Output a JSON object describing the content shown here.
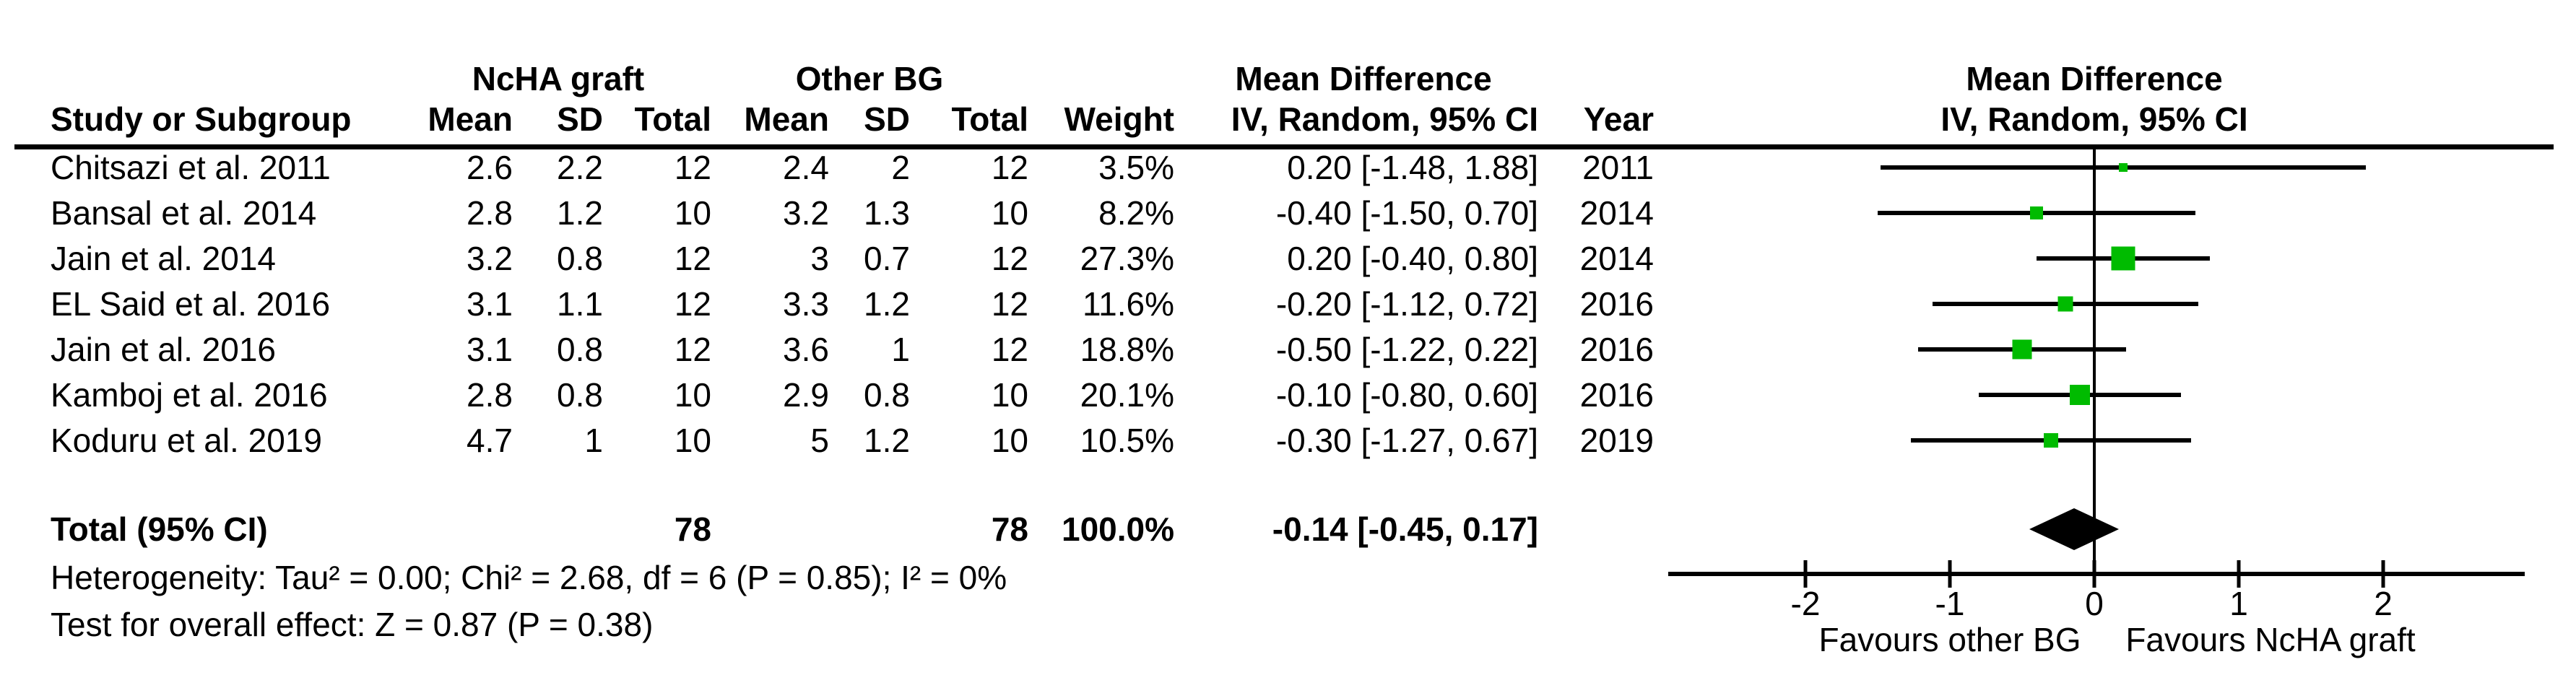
{
  "headers": {
    "study": "Study or Subgroup",
    "mean": "Mean",
    "sd": "SD",
    "total": "Total",
    "weight": "Weight",
    "iv": "IV, Random, 95% CI",
    "year": "Year",
    "group1": "NcHA graft",
    "group2": "Other BG",
    "effect": "Mean Difference"
  },
  "rows": [
    {
      "study": "Chitsazi et al. 2011",
      "mean1": "2.6",
      "sd1": "2.2",
      "total1": "12",
      "mean2": "2.4",
      "sd2": "2",
      "total2": "12",
      "weight": "3.5%",
      "ci": "0.20 [-1.48, 1.88]",
      "year": "2011"
    },
    {
      "study": "Bansal et al. 2014",
      "mean1": "2.8",
      "sd1": "1.2",
      "total1": "10",
      "mean2": "3.2",
      "sd2": "1.3",
      "total2": "10",
      "weight": "8.2%",
      "ci": "-0.40 [-1.50, 0.70]",
      "year": "2014"
    },
    {
      "study": "Jain et al. 2014",
      "mean1": "3.2",
      "sd1": "0.8",
      "total1": "12",
      "mean2": "3",
      "sd2": "0.7",
      "total2": "12",
      "weight": "27.3%",
      "ci": "0.20 [-0.40, 0.80]",
      "year": "2014"
    },
    {
      "study": "EL Said et al. 2016",
      "mean1": "3.1",
      "sd1": "1.1",
      "total1": "12",
      "mean2": "3.3",
      "sd2": "1.2",
      "total2": "12",
      "weight": "11.6%",
      "ci": "-0.20 [-1.12, 0.72]",
      "year": "2016"
    },
    {
      "study": "Jain et al. 2016",
      "mean1": "3.1",
      "sd1": "0.8",
      "total1": "12",
      "mean2": "3.6",
      "sd2": "1",
      "total2": "12",
      "weight": "18.8%",
      "ci": "-0.50 [-1.22, 0.22]",
      "year": "2016"
    },
    {
      "study": "Kamboj et al. 2016",
      "mean1": "2.8",
      "sd1": "0.8",
      "total1": "10",
      "mean2": "2.9",
      "sd2": "0.8",
      "total2": "10",
      "weight": "20.1%",
      "ci": "-0.10 [-0.80, 0.60]",
      "year": "2016"
    },
    {
      "study": "Koduru et al. 2019",
      "mean1": "4.7",
      "sd1": "1",
      "total1": "10",
      "mean2": "5",
      "sd2": "1.2",
      "total2": "10",
      "weight": "10.5%",
      "ci": "-0.30 [-1.27, 0.67]",
      "year": "2019"
    }
  ],
  "total_row": {
    "label": "Total (95% CI)",
    "total1": "78",
    "total2": "78",
    "weight": "100.0%",
    "ci": "-0.14 [-0.45, 0.17]"
  },
  "stats": {
    "heterogeneity": "Heterogeneity: Tau² = 0.00; Chi² = 2.68, df = 6 (P = 0.85); I² = 0%",
    "overall_effect": "Test for overall effect: Z = 0.87 (P = 0.38)"
  },
  "colors": {
    "marker_green": "#00bb00",
    "line_black": "#000000"
  },
  "chart_data": {
    "type": "forest",
    "title": "Mean Difference",
    "model_label": "IV, Random, 95% CI",
    "x_ticks": [
      -2,
      -1,
      0,
      1,
      2
    ],
    "x_range": [
      -2.95,
      2.98
    ],
    "zero_line": 0,
    "favours_left": "Favours other BG",
    "favours_right": "Favours NcHA graft",
    "studies": [
      {
        "name": "Chitsazi et al. 2011",
        "est": 0.2,
        "lo": -1.48,
        "hi": 1.88,
        "weight_pct": 3.5
      },
      {
        "name": "Bansal et al. 2014",
        "est": -0.4,
        "lo": -1.5,
        "hi": 0.7,
        "weight_pct": 8.2
      },
      {
        "name": "Jain et al. 2014",
        "est": 0.2,
        "lo": -0.4,
        "hi": 0.8,
        "weight_pct": 27.3
      },
      {
        "name": "EL Said et al. 2016",
        "est": -0.2,
        "lo": -1.12,
        "hi": 0.72,
        "weight_pct": 11.6
      },
      {
        "name": "Jain et al. 2016",
        "est": -0.5,
        "lo": -1.22,
        "hi": 0.22,
        "weight_pct": 18.8
      },
      {
        "name": "Kamboj et al. 2016",
        "est": -0.1,
        "lo": -0.8,
        "hi": 0.6,
        "weight_pct": 20.1
      },
      {
        "name": "Koduru et al. 2019",
        "est": -0.3,
        "lo": -1.27,
        "hi": 0.67,
        "weight_pct": 10.5
      }
    ],
    "total": {
      "name": "Total (95% CI)",
      "est": -0.14,
      "lo": -0.45,
      "hi": 0.17,
      "weight_pct": 100.0
    }
  }
}
